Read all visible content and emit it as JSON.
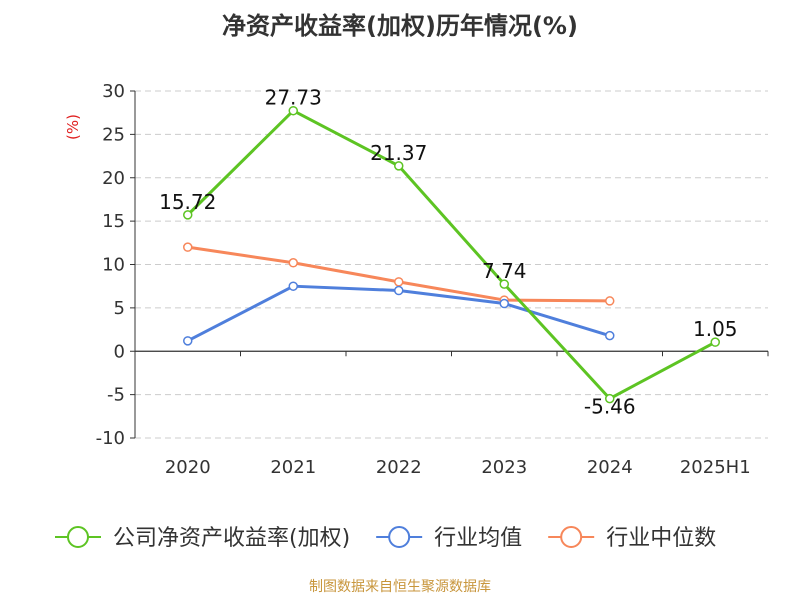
{
  "chart_data": {
    "type": "line",
    "title": "净资产收益率(加权)历年情况(%)",
    "ylabel": "(%)",
    "categories": [
      "2020",
      "2021",
      "2022",
      "2023",
      "2024",
      "2025H1"
    ],
    "ylim": [
      -10,
      30
    ],
    "yticks": [
      -10,
      -5,
      0,
      5,
      10,
      15,
      20,
      25,
      30
    ],
    "grid": true,
    "legend_position": "bottom",
    "series": [
      {
        "name": "公司净资产收益率(加权)",
        "color": "#5dc423",
        "values": [
          15.72,
          27.73,
          21.37,
          7.74,
          -5.46,
          1.05
        ],
        "labels": [
          "15.72",
          "27.73",
          "21.37",
          "7.74",
          "-5.46",
          "1.05"
        ]
      },
      {
        "name": "行业均值",
        "color": "#4f7fdc",
        "values": [
          1.2,
          7.5,
          7.0,
          5.5,
          1.8,
          null
        ]
      },
      {
        "name": "行业中位数",
        "color": "#f7875a",
        "values": [
          12.0,
          10.2,
          8.0,
          5.9,
          5.8,
          null
        ]
      }
    ]
  },
  "source": {
    "text": "制图数据来自恒生聚源数据库",
    "color": "#c8963c"
  },
  "colors": {
    "axis": "#333333",
    "grid": "#cccccc",
    "ylabel": "#e02020"
  }
}
